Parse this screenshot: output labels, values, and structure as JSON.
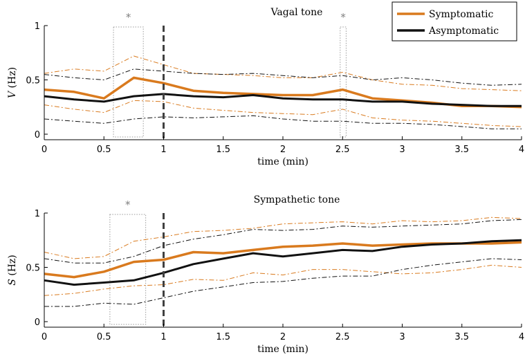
{
  "colors": {
    "symptomatic": "#d97a1e",
    "asymptomatic": "#111111",
    "marker": "#404040",
    "significance": "#7f7f7f"
  },
  "legend": [
    {
      "name": "Symptomatic",
      "color": "#d97a1e"
    },
    {
      "name": "Asymptomatic",
      "color": "#111111"
    }
  ],
  "chart_data": [
    {
      "type": "line",
      "title": "Vagal tone",
      "xlabel": "time (min)",
      "ylabel_var": "V",
      "ylabel_unit": " (Hz)",
      "xlim": [
        0,
        4
      ],
      "ylim": [
        0,
        1
      ],
      "xticks": [
        0,
        0.5,
        1,
        1.5,
        2,
        2.5,
        3,
        3.5,
        4
      ],
      "xtick_labels": [
        "0",
        "0.5",
        "1",
        "1.5",
        "2",
        "2.5",
        "3",
        "3.5",
        "4"
      ],
      "yticks": [
        0,
        0.5,
        1
      ],
      "ytick_labels": [
        "0",
        "0.5",
        "1"
      ],
      "grid": false,
      "onset_line_x": 1,
      "significance": [
        {
          "x0": 0.58,
          "x1": 0.83,
          "label": "*"
        },
        {
          "x0": 2.48,
          "x1": 2.53,
          "label": "*"
        }
      ],
      "x": [
        0,
        0.25,
        0.5,
        0.75,
        1,
        1.25,
        1.5,
        1.75,
        2,
        2.25,
        2.5,
        2.75,
        3,
        3.25,
        3.5,
        3.75,
        4
      ],
      "series": [
        {
          "name": "Symptomatic",
          "role": "mean",
          "values": [
            0.41,
            0.39,
            0.33,
            0.52,
            0.47,
            0.4,
            0.38,
            0.37,
            0.36,
            0.36,
            0.41,
            0.33,
            0.31,
            0.29,
            0.26,
            0.26,
            0.25
          ]
        },
        {
          "name": "Symptomatic",
          "role": "upper",
          "values": [
            0.56,
            0.6,
            0.58,
            0.72,
            0.64,
            0.56,
            0.55,
            0.54,
            0.52,
            0.52,
            0.57,
            0.5,
            0.46,
            0.45,
            0.42,
            0.41,
            0.4
          ]
        },
        {
          "name": "Symptomatic",
          "role": "lower",
          "values": [
            0.27,
            0.23,
            0.2,
            0.31,
            0.3,
            0.24,
            0.22,
            0.2,
            0.19,
            0.18,
            0.23,
            0.15,
            0.13,
            0.12,
            0.1,
            0.08,
            0.07
          ]
        },
        {
          "name": "Asymptomatic",
          "role": "mean",
          "values": [
            0.35,
            0.32,
            0.3,
            0.35,
            0.37,
            0.35,
            0.34,
            0.36,
            0.33,
            0.32,
            0.32,
            0.3,
            0.3,
            0.28,
            0.27,
            0.26,
            0.26
          ]
        },
        {
          "name": "Asymptomatic",
          "role": "upper",
          "values": [
            0.55,
            0.52,
            0.5,
            0.6,
            0.58,
            0.56,
            0.55,
            0.56,
            0.54,
            0.52,
            0.54,
            0.5,
            0.52,
            0.5,
            0.47,
            0.45,
            0.46
          ]
        },
        {
          "name": "Asymptomatic",
          "role": "lower",
          "values": [
            0.14,
            0.12,
            0.1,
            0.14,
            0.16,
            0.15,
            0.16,
            0.17,
            0.14,
            0.12,
            0.12,
            0.1,
            0.1,
            0.09,
            0.07,
            0.05,
            0.05
          ]
        }
      ]
    },
    {
      "type": "line",
      "title": "Sympathetic tone",
      "xlabel": "time (min)",
      "ylabel_var": "S",
      "ylabel_unit": " (Hz)",
      "xlim": [
        0,
        4
      ],
      "ylim": [
        0,
        1
      ],
      "xticks": [
        0,
        0.5,
        1,
        1.5,
        2,
        2.5,
        3,
        3.5,
        4
      ],
      "xtick_labels": [
        "0",
        "0.5",
        "1",
        "1.5",
        "2",
        "2.5",
        "3",
        "3.5",
        "4"
      ],
      "yticks": [
        0,
        0.5,
        1
      ],
      "ytick_labels": [
        "0",
        "0.5",
        "1"
      ],
      "grid": false,
      "onset_line_x": 1,
      "significance": [
        {
          "x0": 0.55,
          "x1": 0.85,
          "label": "*"
        }
      ],
      "x": [
        0,
        0.25,
        0.5,
        0.75,
        1,
        1.25,
        1.5,
        1.75,
        2,
        2.25,
        2.5,
        2.75,
        3,
        3.25,
        3.5,
        3.75,
        4
      ],
      "series": [
        {
          "name": "Symptomatic",
          "role": "mean",
          "values": [
            0.44,
            0.41,
            0.46,
            0.55,
            0.57,
            0.64,
            0.63,
            0.66,
            0.69,
            0.7,
            0.72,
            0.7,
            0.71,
            0.72,
            0.72,
            0.72,
            0.73
          ]
        },
        {
          "name": "Symptomatic",
          "role": "upper",
          "values": [
            0.64,
            0.58,
            0.6,
            0.74,
            0.78,
            0.83,
            0.84,
            0.86,
            0.9,
            0.91,
            0.92,
            0.9,
            0.93,
            0.92,
            0.93,
            0.96,
            0.95
          ]
        },
        {
          "name": "Symptomatic",
          "role": "lower",
          "values": [
            0.24,
            0.26,
            0.3,
            0.33,
            0.34,
            0.39,
            0.38,
            0.45,
            0.43,
            0.48,
            0.48,
            0.46,
            0.44,
            0.45,
            0.48,
            0.52,
            0.5
          ]
        },
        {
          "name": "Asymptomatic",
          "role": "mean",
          "values": [
            0.38,
            0.34,
            0.36,
            0.38,
            0.45,
            0.53,
            0.58,
            0.63,
            0.6,
            0.63,
            0.66,
            0.65,
            0.69,
            0.71,
            0.72,
            0.74,
            0.75
          ]
        },
        {
          "name": "Asymptomatic",
          "role": "upper",
          "values": [
            0.58,
            0.54,
            0.54,
            0.6,
            0.7,
            0.76,
            0.8,
            0.85,
            0.84,
            0.85,
            0.88,
            0.87,
            0.88,
            0.89,
            0.9,
            0.93,
            0.94
          ]
        },
        {
          "name": "Asymptomatic",
          "role": "lower",
          "values": [
            0.14,
            0.14,
            0.17,
            0.16,
            0.22,
            0.28,
            0.32,
            0.36,
            0.37,
            0.4,
            0.42,
            0.42,
            0.48,
            0.52,
            0.55,
            0.58,
            0.57
          ]
        }
      ]
    }
  ]
}
